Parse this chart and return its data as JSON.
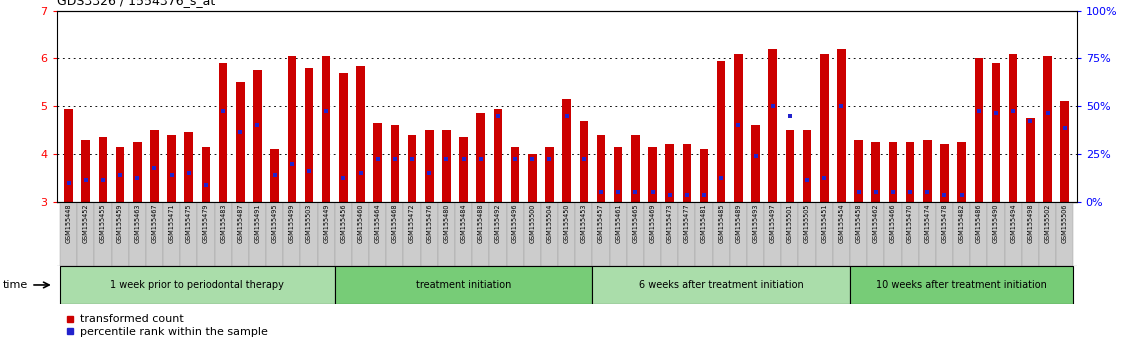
{
  "title": "GDS3326 / 1554376_s_at",
  "ylim": [
    3,
    7
  ],
  "yticks_left": [
    3,
    4,
    5,
    6,
    7
  ],
  "yticks_right": [
    0,
    25,
    50,
    75,
    100
  ],
  "right_ylabels": [
    "0%",
    "25%",
    "50%",
    "75%",
    "100%"
  ],
  "bar_color": "#CC0000",
  "dot_color": "#2222CC",
  "bg_color": "#FFFFFF",
  "tick_bg_color": "#CCCCCC",
  "tick_border_color": "#999999",
  "groups": [
    {
      "label": "1 week prior to periodontal therapy",
      "start": 0,
      "end": 16,
      "color": "#AADDAA"
    },
    {
      "label": "treatment initiation",
      "start": 16,
      "end": 31,
      "color": "#77CC77"
    },
    {
      "label": "6 weeks after treatment initiation",
      "start": 31,
      "end": 46,
      "color": "#AADDAA"
    },
    {
      "label": "10 weeks after treatment initiation",
      "start": 46,
      "end": 59,
      "color": "#77CC77"
    }
  ],
  "samples": [
    "GSM155448",
    "GSM155452",
    "GSM155455",
    "GSM155459",
    "GSM155463",
    "GSM155467",
    "GSM155471",
    "GSM155475",
    "GSM155479",
    "GSM155483",
    "GSM155487",
    "GSM155491",
    "GSM155495",
    "GSM155499",
    "GSM155503",
    "GSM155449",
    "GSM155456",
    "GSM155460",
    "GSM155464",
    "GSM155468",
    "GSM155472",
    "GSM155476",
    "GSM155480",
    "GSM155484",
    "GSM155488",
    "GSM155492",
    "GSM155496",
    "GSM155500",
    "GSM155504",
    "GSM155450",
    "GSM155453",
    "GSM155457",
    "GSM155461",
    "GSM155465",
    "GSM155469",
    "GSM155473",
    "GSM155477",
    "GSM155481",
    "GSM155485",
    "GSM155489",
    "GSM155493",
    "GSM155497",
    "GSM155501",
    "GSM155505",
    "GSM155451",
    "GSM155454",
    "GSM155458",
    "GSM155462",
    "GSM155466",
    "GSM155470",
    "GSM155474",
    "GSM155478",
    "GSM155482",
    "GSM155486",
    "GSM155490",
    "GSM155494",
    "GSM155498",
    "GSM155502",
    "GSM155506"
  ],
  "bar_values": [
    4.95,
    4.3,
    4.35,
    4.15,
    4.25,
    4.5,
    4.4,
    4.45,
    4.15,
    5.9,
    5.5,
    5.75,
    4.1,
    6.05,
    5.8,
    6.05,
    5.7,
    5.85,
    4.65,
    4.6,
    4.4,
    4.5,
    4.5,
    4.35,
    4.85,
    4.95,
    4.15,
    4.0,
    4.15,
    5.15,
    4.7,
    4.4,
    4.15,
    4.4,
    4.15,
    4.2,
    4.2,
    4.1,
    5.95,
    6.1,
    4.6,
    6.2,
    4.5,
    4.5,
    6.1,
    6.2,
    4.3,
    4.25,
    4.25,
    4.25,
    4.3,
    4.2,
    4.25,
    6.0,
    5.9,
    6.1,
    4.75,
    6.05,
    5.1
  ],
  "dot_values": [
    3.4,
    3.45,
    3.45,
    3.55,
    3.5,
    3.7,
    3.55,
    3.6,
    3.35,
    4.9,
    4.45,
    4.6,
    3.55,
    3.8,
    3.65,
    4.9,
    3.5,
    3.6,
    3.9,
    3.9,
    3.9,
    3.6,
    3.9,
    3.9,
    3.9,
    4.8,
    3.9,
    3.9,
    3.9,
    4.8,
    3.9,
    3.2,
    3.2,
    3.2,
    3.2,
    3.15,
    3.15,
    3.15,
    3.5,
    4.6,
    3.95,
    5.0,
    4.8,
    3.45,
    3.5,
    5.0,
    3.2,
    3.2,
    3.2,
    3.2,
    3.2,
    3.15,
    3.15,
    4.9,
    4.85,
    4.9,
    4.7,
    4.85,
    4.55
  ]
}
